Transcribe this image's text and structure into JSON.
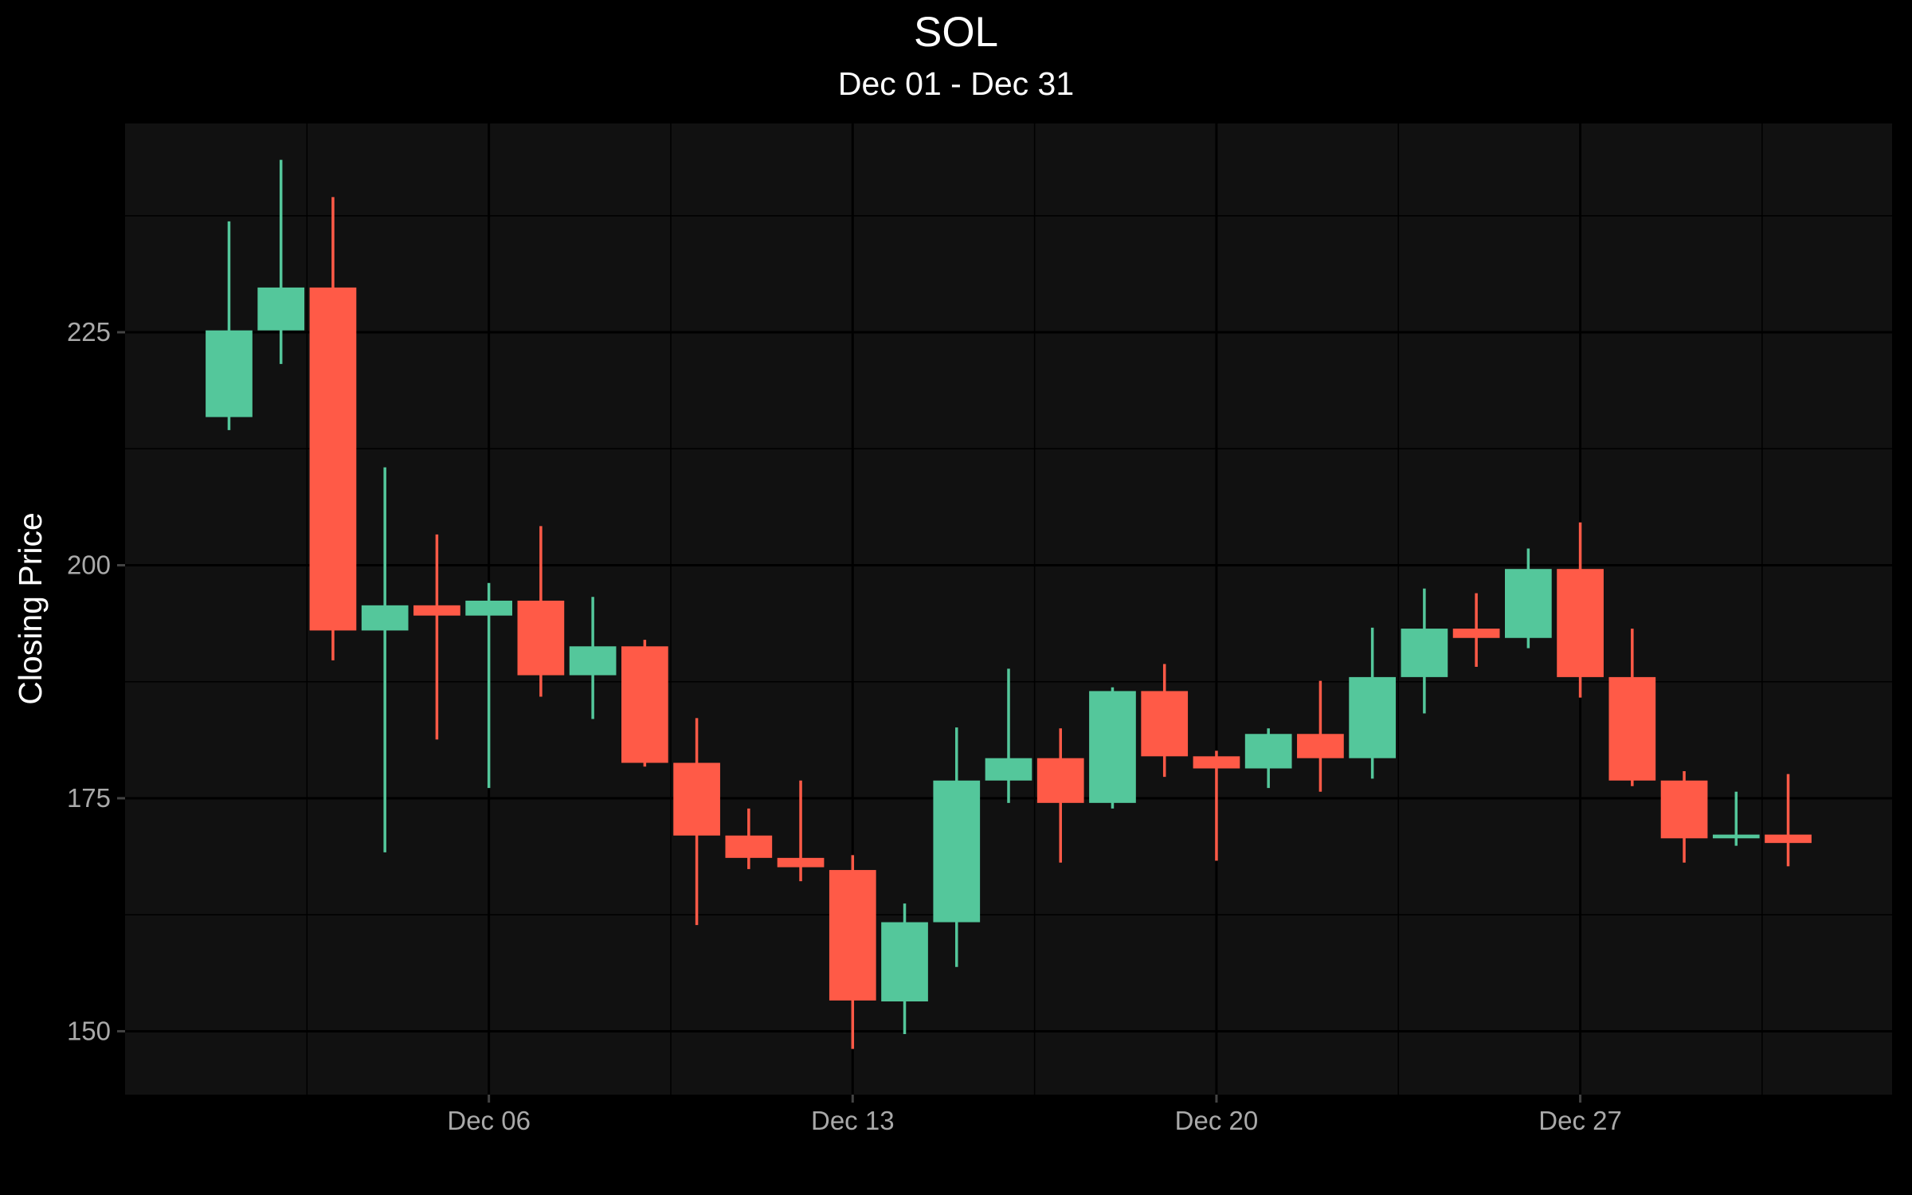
{
  "chart_data": {
    "type": "candlestick",
    "title": "SOL",
    "subtitle": "Dec 01 - Dec 31",
    "ylabel": "Closing Price",
    "xlabel": "",
    "ylim": [
      143.2,
      247.4
    ],
    "xlim": [
      "2023-11-29",
      "2024-01-02"
    ],
    "yticks": [
      150,
      175,
      200,
      225
    ],
    "xticks": [
      {
        "date": "2023-12-06",
        "label": "Dec 06"
      },
      {
        "date": "2023-12-13",
        "label": "Dec 13"
      },
      {
        "date": "2023-12-20",
        "label": "Dec 20"
      },
      {
        "date": "2023-12-27",
        "label": "Dec 27"
      }
    ],
    "colors": {
      "up": "#54c79b",
      "down": "#ff5a47",
      "panel": "#111111",
      "background": "#000000",
      "grid": "#000000"
    },
    "grid": true,
    "legend": "none",
    "candles": [
      {
        "date": "2023-12-01",
        "open": 215.9,
        "high": 236.9,
        "low": 214.5,
        "close": 225.2
      },
      {
        "date": "2023-12-02",
        "open": 225.2,
        "high": 243.5,
        "low": 221.6,
        "close": 229.8
      },
      {
        "date": "2023-12-03",
        "open": 229.8,
        "high": 239.5,
        "low": 189.8,
        "close": 193.0
      },
      {
        "date": "2023-12-04",
        "open": 193.0,
        "high": 210.5,
        "low": 169.2,
        "close": 195.7
      },
      {
        "date": "2023-12-05",
        "open": 195.7,
        "high": 203.3,
        "low": 181.3,
        "close": 194.6
      },
      {
        "date": "2023-12-06",
        "open": 194.6,
        "high": 198.1,
        "low": 176.1,
        "close": 196.2
      },
      {
        "date": "2023-12-07",
        "open": 196.2,
        "high": 204.2,
        "low": 185.9,
        "close": 188.2
      },
      {
        "date": "2023-12-08",
        "open": 188.2,
        "high": 196.6,
        "low": 183.5,
        "close": 191.3
      },
      {
        "date": "2023-12-09",
        "open": 191.3,
        "high": 192.0,
        "low": 178.4,
        "close": 178.8
      },
      {
        "date": "2023-12-10",
        "open": 178.8,
        "high": 183.6,
        "low": 161.4,
        "close": 171.0
      },
      {
        "date": "2023-12-11",
        "open": 171.0,
        "high": 173.9,
        "low": 167.4,
        "close": 168.6
      },
      {
        "date": "2023-12-12",
        "open": 168.6,
        "high": 176.9,
        "low": 166.1,
        "close": 167.6
      },
      {
        "date": "2023-12-13",
        "open": 167.3,
        "high": 168.9,
        "low": 148.1,
        "close": 153.3
      },
      {
        "date": "2023-12-14",
        "open": 153.2,
        "high": 163.7,
        "low": 149.7,
        "close": 161.7
      },
      {
        "date": "2023-12-15",
        "open": 161.7,
        "high": 182.6,
        "low": 156.9,
        "close": 176.9
      },
      {
        "date": "2023-12-16",
        "open": 176.9,
        "high": 188.9,
        "low": 174.5,
        "close": 179.3
      },
      {
        "date": "2023-12-17",
        "open": 179.3,
        "high": 182.5,
        "low": 168.1,
        "close": 174.5
      },
      {
        "date": "2023-12-18",
        "open": 174.5,
        "high": 186.9,
        "low": 173.9,
        "close": 186.5
      },
      {
        "date": "2023-12-19",
        "open": 186.5,
        "high": 189.4,
        "low": 177.3,
        "close": 179.5
      },
      {
        "date": "2023-12-20",
        "open": 179.5,
        "high": 180.1,
        "low": 168.3,
        "close": 178.2
      },
      {
        "date": "2023-12-21",
        "open": 178.2,
        "high": 182.5,
        "low": 176.1,
        "close": 181.9
      },
      {
        "date": "2023-12-22",
        "open": 181.9,
        "high": 187.6,
        "low": 175.7,
        "close": 179.3
      },
      {
        "date": "2023-12-23",
        "open": 179.3,
        "high": 193.3,
        "low": 177.1,
        "close": 188.0
      },
      {
        "date": "2023-12-24",
        "open": 188.0,
        "high": 197.5,
        "low": 184.1,
        "close": 193.2
      },
      {
        "date": "2023-12-25",
        "open": 193.2,
        "high": 197.0,
        "low": 189.1,
        "close": 192.2
      },
      {
        "date": "2023-12-26",
        "open": 192.2,
        "high": 201.8,
        "low": 191.1,
        "close": 199.6
      },
      {
        "date": "2023-12-27",
        "open": 199.6,
        "high": 204.6,
        "low": 185.8,
        "close": 188.0
      },
      {
        "date": "2023-12-28",
        "open": 188.0,
        "high": 193.2,
        "low": 176.3,
        "close": 176.9
      },
      {
        "date": "2023-12-29",
        "open": 176.9,
        "high": 177.9,
        "low": 168.1,
        "close": 170.7
      },
      {
        "date": "2023-12-30",
        "open": 170.7,
        "high": 175.7,
        "low": 169.9,
        "close": 171.1
      },
      {
        "date": "2023-12-31",
        "open": 171.1,
        "high": 177.6,
        "low": 167.7,
        "close": 170.2
      }
    ]
  }
}
